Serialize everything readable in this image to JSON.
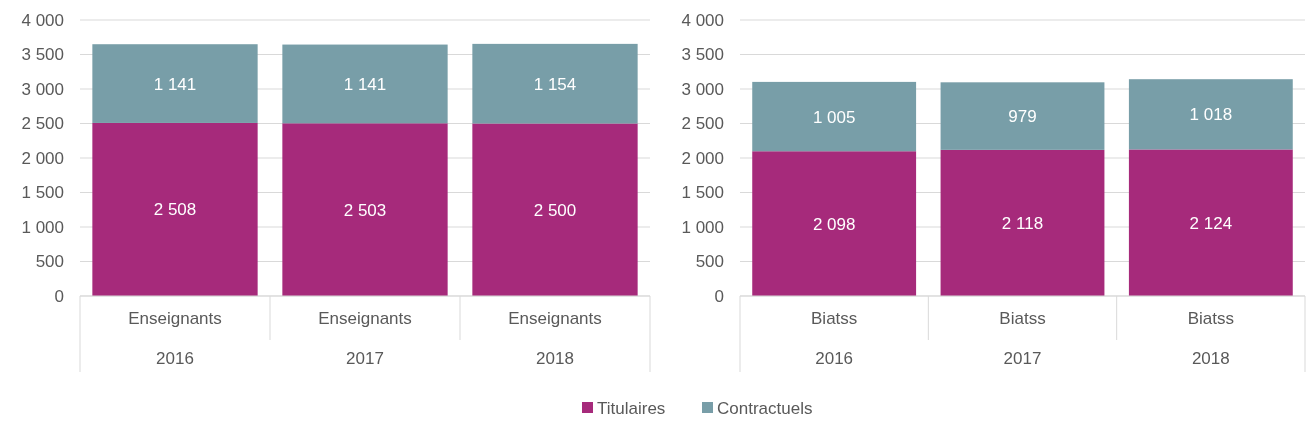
{
  "chart_data": [
    {
      "type": "bar",
      "stacked": true,
      "data_labels": true,
      "grid": "y",
      "categories": [
        "Enseignants\n2016",
        "Enseignants\n2017",
        "Enseignants\n2018"
      ],
      "ylim": [
        0,
        4000
      ],
      "yticks": [
        0,
        {
          "value": 500,
          "label": "500"
        },
        {
          "value": 1000,
          "label": "1 000"
        },
        {
          "value": 1500,
          "label": "1 500"
        },
        {
          "value": 2000,
          "label": "2 000"
        },
        {
          "value": 2500,
          "label": "2 500"
        },
        {
          "value": 3000,
          "label": "3 000"
        },
        {
          "value": 3500,
          "label": "3 500"
        },
        {
          "value": 4000,
          "label": "4 000"
        }
      ],
      "series": [
        {
          "color": "#a62a7b",
          "values": [
            2508,
            2503,
            2500
          ]
        },
        {
          "color": "#789ea8",
          "values": [
            1141,
            1141,
            1154
          ]
        }
      ]
    },
    {
      "type": "bar",
      "stacked": true,
      "data_labels": true,
      "grid": "y",
      "categories": [
        "Biatss\n2016",
        "Biatss\n2017",
        "Biatss\n2018"
      ],
      "ylim": [
        0,
        4000
      ],
      "yticks": [
        0,
        {
          "value": 500,
          "label": "500"
        },
        {
          "value": 1000,
          "label": "1 000"
        },
        {
          "value": 1500,
          "label": "1 500"
        },
        {
          "value": 2000,
          "label": "2 000"
        },
        {
          "value": 2500,
          "label": "2 500"
        },
        {
          "value": 3000,
          "label": "3 000"
        },
        {
          "value": 3500,
          "label": "3 500"
        },
        {
          "value": 4000,
          "label": "4 000"
        }
      ],
      "series": [
        {
          "name": "Titulaires",
          "color": "#a62a7b",
          "values": [
            2098,
            2118,
            2124
          ]
        },
        {
          "name": "Contractuels",
          "color": "#789ea8",
          "values": [
            1005,
            979,
            1018
          ]
        }
      ],
      "legend": "bottom"
    }
  ]
}
